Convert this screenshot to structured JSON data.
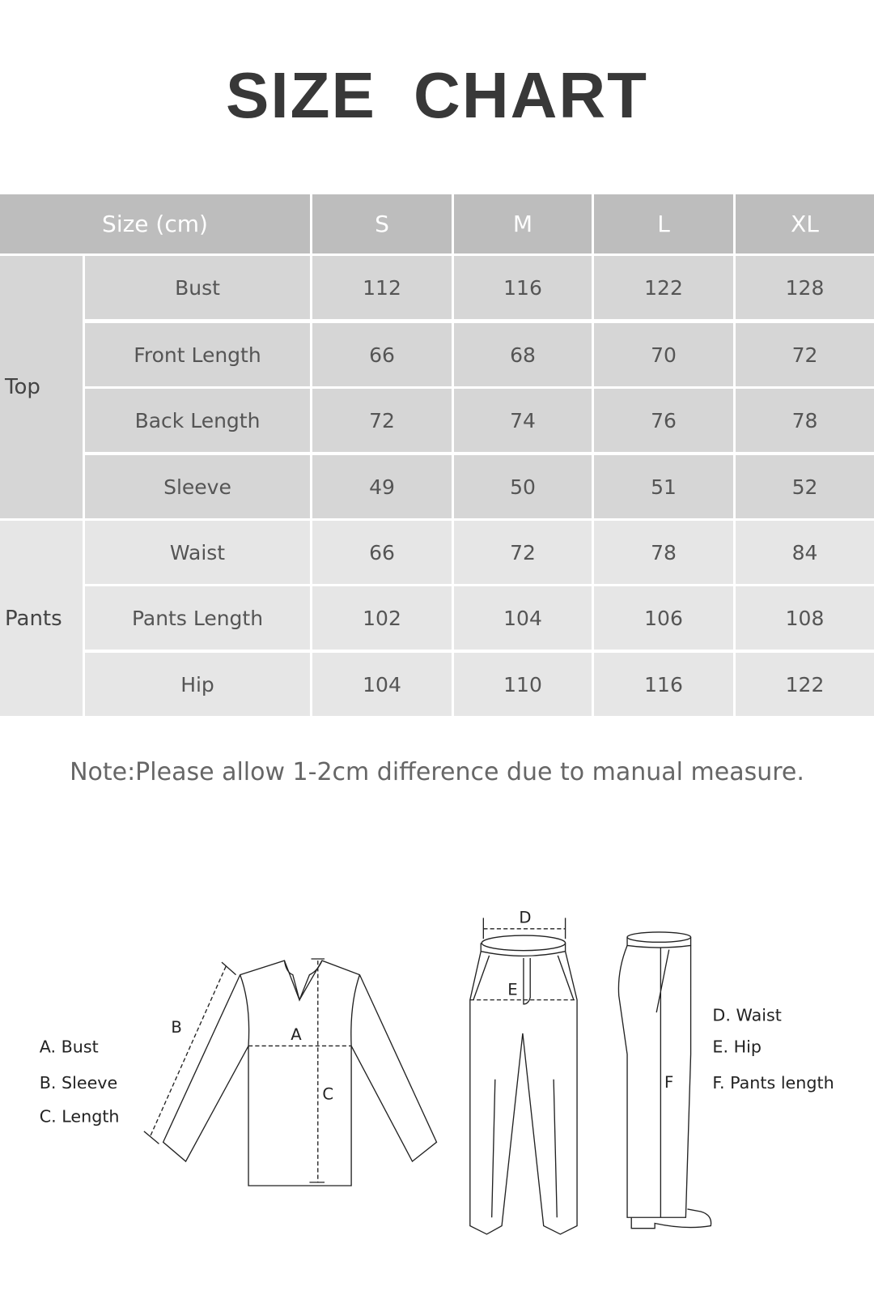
{
  "title": "SIZE  CHART",
  "table": {
    "header": [
      "Size (cm)",
      "S",
      "M",
      "L",
      "XL"
    ],
    "groups": [
      {
        "label": "Top",
        "rows": [
          {
            "name": "Bust",
            "values": [
              "112",
              "116",
              "122",
              "128"
            ]
          },
          {
            "name": "Front Length",
            "values": [
              "66",
              "68",
              "70",
              "72"
            ]
          },
          {
            "name": "Back Length",
            "values": [
              "72",
              "74",
              "76",
              "78"
            ]
          },
          {
            "name": "Sleeve",
            "values": [
              "49",
              "50",
              "51",
              "52"
            ]
          }
        ]
      },
      {
        "label": "Pants",
        "rows": [
          {
            "name": "Waist",
            "values": [
              "66",
              "72",
              "78",
              "84"
            ]
          },
          {
            "name": "Pants Length",
            "values": [
              "102",
              "104",
              "106",
              "108"
            ]
          },
          {
            "name": "Hip",
            "values": [
              "104",
              "110",
              "116",
              "122"
            ]
          }
        ]
      }
    ],
    "colors": {
      "header": "#bdbdbd",
      "top_rows": "#d6d6d6",
      "pants_rows": "#e6e6e6"
    }
  },
  "note": "Note:Please allow 1-2cm difference due to manual measure.",
  "diagram": {
    "markers": {
      "a": "A",
      "b": "B",
      "c": "C",
      "d": "D",
      "e": "E",
      "f": "F"
    },
    "legend_top": [
      "A.  Bust",
      "B.  Sleeve",
      "C.  Length"
    ],
    "legend_pants": [
      "D.  Waist",
      "E.  Hip",
      "F.  Pants length"
    ]
  }
}
